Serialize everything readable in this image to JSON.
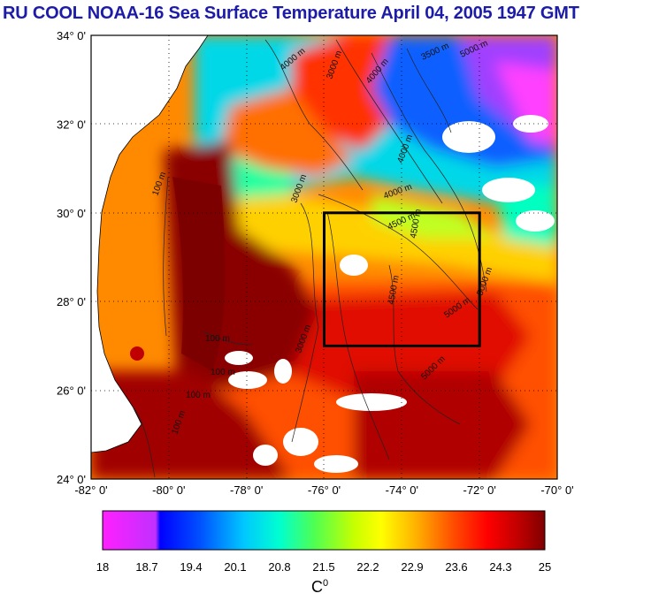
{
  "title": "RU COOL  NOAA-16 Sea Surface Temperature April 04, 2005 1947 GMT",
  "map": {
    "lat_ticks": [
      "34° 0'",
      "32° 0'",
      "30° 0'",
      "28° 0'",
      "26° 0'",
      "24° 0'"
    ],
    "lon_ticks": [
      "-82° 0'",
      "-80° 0'",
      "-78° 0'",
      "-76° 0'",
      "-74° 0'",
      "-72° 0'",
      "-70° 0'"
    ],
    "lat_range": [
      24,
      34
    ],
    "lon_range": [
      -82,
      -70
    ],
    "study_box": {
      "lon_min": -76,
      "lon_max": -72,
      "lat_min": 27,
      "lat_max": 30
    },
    "contour_labels": [
      "100 m",
      "100 m",
      "100 m",
      "100 m",
      "100 m",
      "3000 m",
      "3000 m",
      "3500 m",
      "4000 m",
      "4500 m",
      "4500 m",
      "4000 m",
      "4000 m",
      "4500 m",
      "5000 m",
      "5000 m",
      "5000 m",
      "5000 m",
      "4000 m",
      "3000 m"
    ]
  },
  "colorbar": {
    "ticks": [
      "18",
      "18.7",
      "19.4",
      "20.1",
      "20.8",
      "21.5",
      "22.2",
      "22.9",
      "23.6",
      "24.3",
      "25"
    ],
    "unit": "C",
    "unit_sup": "0",
    "colors": [
      "#ff00ff",
      "#0000ff",
      "#0060ff",
      "#00c8ff",
      "#00ffc0",
      "#40ff40",
      "#c0ff00",
      "#ffff00",
      "#ffb000",
      "#ff6000",
      "#ff0000",
      "#c00000",
      "#7a0000"
    ]
  }
}
